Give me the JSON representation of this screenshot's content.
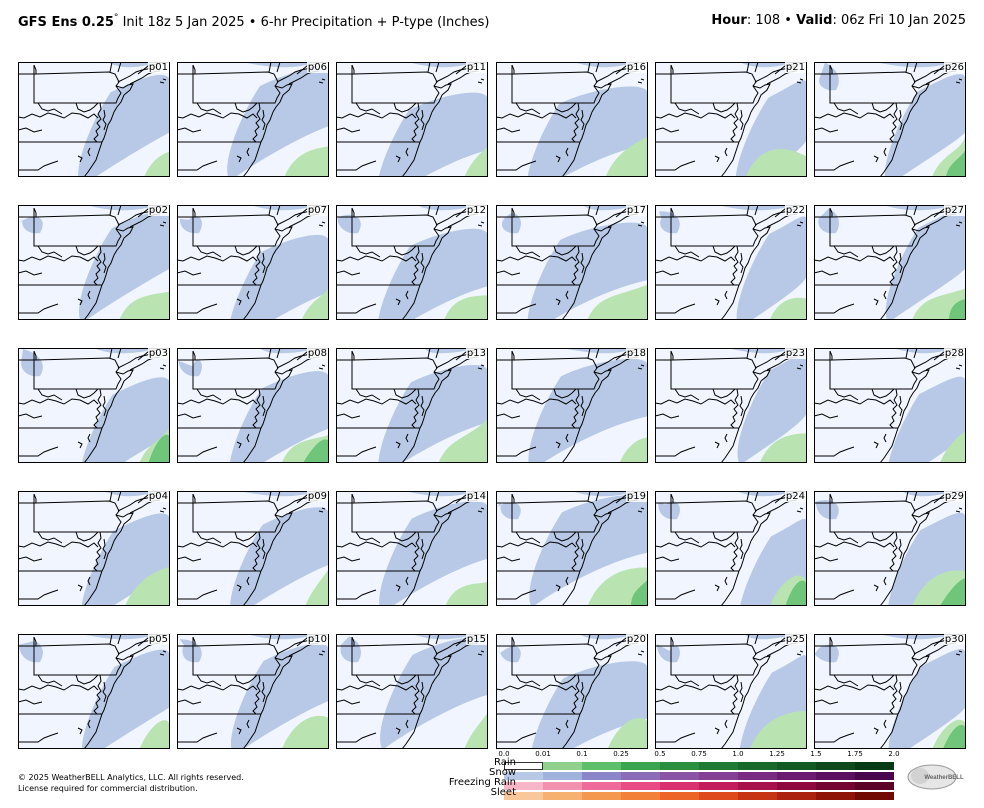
{
  "header": {
    "model": "GFS Ens 0.25",
    "degree_symbol": "°",
    "init": "Init 18z 5 Jan 2025",
    "bullet": "•",
    "product": "6-hr Precipitation + P-type (Inches)",
    "hour_label": "Hour",
    "hour_value": ": 108",
    "valid_label": "Valid",
    "valid_value": ": 06z Fri 10 Jan 2025"
  },
  "members": [
    [
      "p01",
      "p06",
      "p11",
      "p16",
      "p21",
      "p26"
    ],
    [
      "p02",
      "p07",
      "p12",
      "p17",
      "p22",
      "p27"
    ],
    [
      "p03",
      "p08",
      "p13",
      "p18",
      "p23",
      "p28"
    ],
    [
      "p04",
      "p09",
      "p14",
      "p19",
      "p24",
      "p29"
    ],
    [
      "p05",
      "p10",
      "p15",
      "p20",
      "p25",
      "p30"
    ]
  ],
  "footer": {
    "copyright": "© 2025 WeatherBELL Analytics, LLC. All rights reserved.",
    "license": "License required for commercial distribution."
  },
  "legend": {
    "ticks": [
      "0.0",
      "0.01",
      "0.1",
      "0.25",
      "0.5",
      "0.75",
      "1.0",
      "1.25",
      "1.5",
      "1.75",
      "2.0"
    ],
    "categories": [
      "Rain",
      "Snow",
      "Freezing Rain",
      "Sleet"
    ],
    "colors": {
      "rain": [
        "#ffffff",
        "#b9e4b2",
        "#8fd18c",
        "#5ebf6a",
        "#3aa54f",
        "#2a8f3e",
        "#1f7a33",
        "#186a2b",
        "#125a24",
        "#0c4a1c",
        "#063a14"
      ],
      "snow": [
        "#ffffff",
        "#b7c9e6",
        "#9fb3dc",
        "#8a86c9",
        "#8b6cb8",
        "#8a54a6",
        "#843f94",
        "#7a2c82",
        "#6c1c70",
        "#5c0f5e",
        "#4a064c"
      ],
      "freezing_rain": [
        "#ffffff",
        "#f7b6c8",
        "#f290b0",
        "#ee6a9a",
        "#e84a84",
        "#d93070",
        "#c21c5c",
        "#a8124c",
        "#8e0a3e",
        "#740532",
        "#5c0226"
      ],
      "sleet": [
        "#ffffff",
        "#f9c89a",
        "#f6b070",
        "#f49850",
        "#f28038",
        "#ec6428",
        "#de4a1c",
        "#c73414",
        "#ab220e",
        "#8e1408",
        "#720a04"
      ]
    }
  },
  "colors": {
    "land": "#f0f5ff",
    "snow_light": "#b7c9e6",
    "rain_light": "#b9e4b2",
    "rain_moderate": "#6fc579"
  },
  "logo_text": "WeatherBELL"
}
